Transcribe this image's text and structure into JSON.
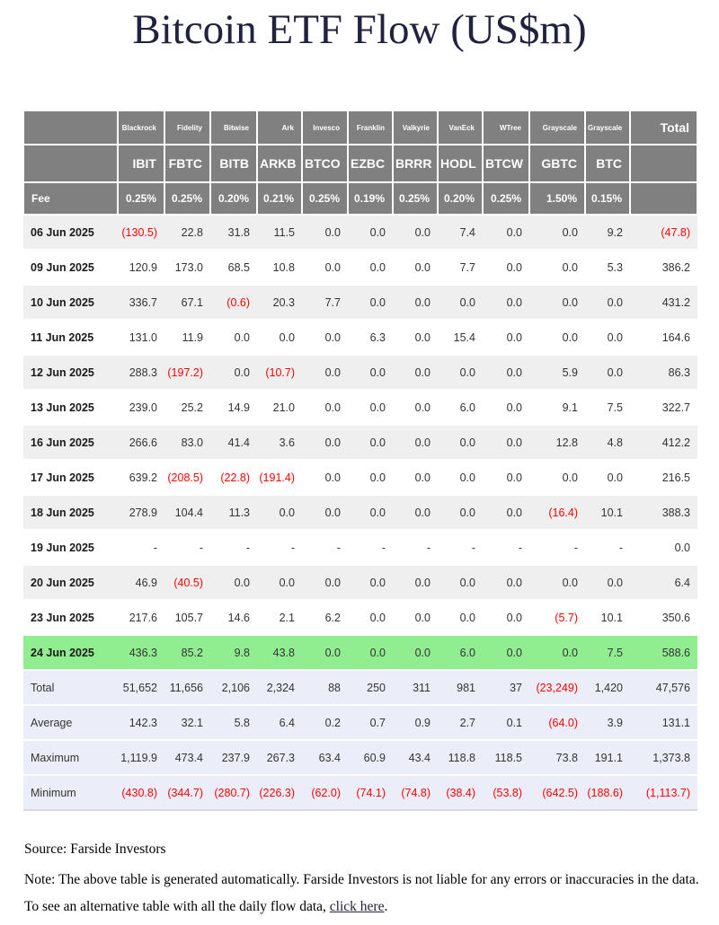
{
  "title": "Bitcoin ETF Flow (US$m)",
  "table": {
    "corner_label": "",
    "total_header": "Total",
    "fee_label": "Fee",
    "columns": [
      {
        "issuer": "Blackrock",
        "ticker": "IBIT",
        "fee": "0.25%"
      },
      {
        "issuer": "Fidelity",
        "ticker": "FBTC",
        "fee": "0.25%"
      },
      {
        "issuer": "Bitwise",
        "ticker": "BITB",
        "fee": "0.20%"
      },
      {
        "issuer": "Ark",
        "ticker": "ARKB",
        "fee": "0.21%"
      },
      {
        "issuer": "Invesco",
        "ticker": "BTCO",
        "fee": "0.25%"
      },
      {
        "issuer": "Franklin",
        "ticker": "EZBC",
        "fee": "0.19%"
      },
      {
        "issuer": "Valkyrie",
        "ticker": "BRRR",
        "fee": "0.25%"
      },
      {
        "issuer": "VanEck",
        "ticker": "HODL",
        "fee": "0.20%"
      },
      {
        "issuer": "WTree",
        "ticker": "BTCW",
        "fee": "0.25%"
      },
      {
        "issuer": "Grayscale",
        "ticker": "GBTC",
        "fee": "1.50%"
      },
      {
        "issuer": "Grayscale",
        "ticker": "BTC",
        "fee": "0.15%"
      }
    ],
    "rows": [
      {
        "date": "06 Jun 2025",
        "values": [
          "(130.5)",
          "22.8",
          "31.8",
          "11.5",
          "0.0",
          "0.0",
          "0.0",
          "7.4",
          "0.0",
          "0.0",
          "9.2"
        ],
        "total": "(47.8)"
      },
      {
        "date": "09 Jun 2025",
        "values": [
          "120.9",
          "173.0",
          "68.5",
          "10.8",
          "0.0",
          "0.0",
          "0.0",
          "7.7",
          "0.0",
          "0.0",
          "5.3"
        ],
        "total": "386.2"
      },
      {
        "date": "10 Jun 2025",
        "values": [
          "336.7",
          "67.1",
          "(0.6)",
          "20.3",
          "7.7",
          "0.0",
          "0.0",
          "0.0",
          "0.0",
          "0.0",
          "0.0"
        ],
        "total": "431.2"
      },
      {
        "date": "11 Jun 2025",
        "values": [
          "131.0",
          "11.9",
          "0.0",
          "0.0",
          "0.0",
          "6.3",
          "0.0",
          "15.4",
          "0.0",
          "0.0",
          "0.0"
        ],
        "total": "164.6"
      },
      {
        "date": "12 Jun 2025",
        "values": [
          "288.3",
          "(197.2)",
          "0.0",
          "(10.7)",
          "0.0",
          "0.0",
          "0.0",
          "0.0",
          "0.0",
          "5.9",
          "0.0"
        ],
        "total": "86.3"
      },
      {
        "date": "13 Jun 2025",
        "values": [
          "239.0",
          "25.2",
          "14.9",
          "21.0",
          "0.0",
          "0.0",
          "0.0",
          "6.0",
          "0.0",
          "9.1",
          "7.5"
        ],
        "total": "322.7"
      },
      {
        "date": "16 Jun 2025",
        "values": [
          "266.6",
          "83.0",
          "41.4",
          "3.6",
          "0.0",
          "0.0",
          "0.0",
          "0.0",
          "0.0",
          "12.8",
          "4.8"
        ],
        "total": "412.2"
      },
      {
        "date": "17 Jun 2025",
        "values": [
          "639.2",
          "(208.5)",
          "(22.8)",
          "(191.4)",
          "0.0",
          "0.0",
          "0.0",
          "0.0",
          "0.0",
          "0.0",
          "0.0"
        ],
        "total": "216.5"
      },
      {
        "date": "18 Jun 2025",
        "values": [
          "278.9",
          "104.4",
          "11.3",
          "0.0",
          "0.0",
          "0.0",
          "0.0",
          "0.0",
          "0.0",
          "(16.4)",
          "10.1"
        ],
        "total": "388.3"
      },
      {
        "date": "19 Jun 2025",
        "values": [
          "-",
          "-",
          "-",
          "-",
          "-",
          "-",
          "-",
          "-",
          "-",
          "-",
          "-"
        ],
        "total": "0.0"
      },
      {
        "date": "20 Jun 2025",
        "values": [
          "46.9",
          "(40.5)",
          "0.0",
          "0.0",
          "0.0",
          "0.0",
          "0.0",
          "0.0",
          "0.0",
          "0.0",
          "0.0"
        ],
        "total": "6.4"
      },
      {
        "date": "23 Jun 2025",
        "values": [
          "217.6",
          "105.7",
          "14.6",
          "2.1",
          "6.2",
          "0.0",
          "0.0",
          "0.0",
          "0.0",
          "(5.7)",
          "10.1"
        ],
        "total": "350.6"
      },
      {
        "date": "24 Jun 2025",
        "values": [
          "436.3",
          "85.2",
          "9.8",
          "43.8",
          "0.0",
          "0.0",
          "0.0",
          "6.0",
          "0.0",
          "0.0",
          "7.5"
        ],
        "total": "588.6",
        "highlight": true
      }
    ],
    "summary_rows": [
      {
        "label": "Total",
        "values": [
          "51,652",
          "11,656",
          "2,106",
          "2,324",
          "88",
          "250",
          "311",
          "981",
          "37",
          "(23,249)",
          "1,420"
        ],
        "total": "47,576"
      },
      {
        "label": "Average",
        "values": [
          "142.3",
          "32.1",
          "5.8",
          "6.4",
          "0.2",
          "0.7",
          "0.9",
          "2.7",
          "0.1",
          "(64.0)",
          "3.9"
        ],
        "total": "131.1"
      },
      {
        "label": "Maximum",
        "values": [
          "1,119.9",
          "473.4",
          "237.9",
          "267.3",
          "63.4",
          "60.9",
          "43.4",
          "118.8",
          "118.5",
          "73.8",
          "191.1"
        ],
        "total": "1,373.8"
      },
      {
        "label": "Minimum",
        "values": [
          "(430.8)",
          "(344.7)",
          "(280.7)",
          "(226.3)",
          "(62.0)",
          "(74.1)",
          "(74.8)",
          "(38.4)",
          "(53.8)",
          "(642.5)",
          "(188.6)"
        ],
        "total": "(1,113.7)"
      }
    ]
  },
  "footer": {
    "source": "Source: Farside Investors",
    "note_before_link": "Note: The above table is generated automatically. Farside Investors is not liable for any errors or inaccuracies in the data. To see an alternative table with all the daily flow data, ",
    "link_text": "click here",
    "note_after_link": "."
  },
  "colors": {
    "header_bg": "#808080",
    "header_text": "#ffffff",
    "negative": "#ff0000",
    "highlight_row": "#90ee90",
    "summary_row": "#ebeef8",
    "alt_row": "#efefef",
    "title_text": "#212140"
  }
}
